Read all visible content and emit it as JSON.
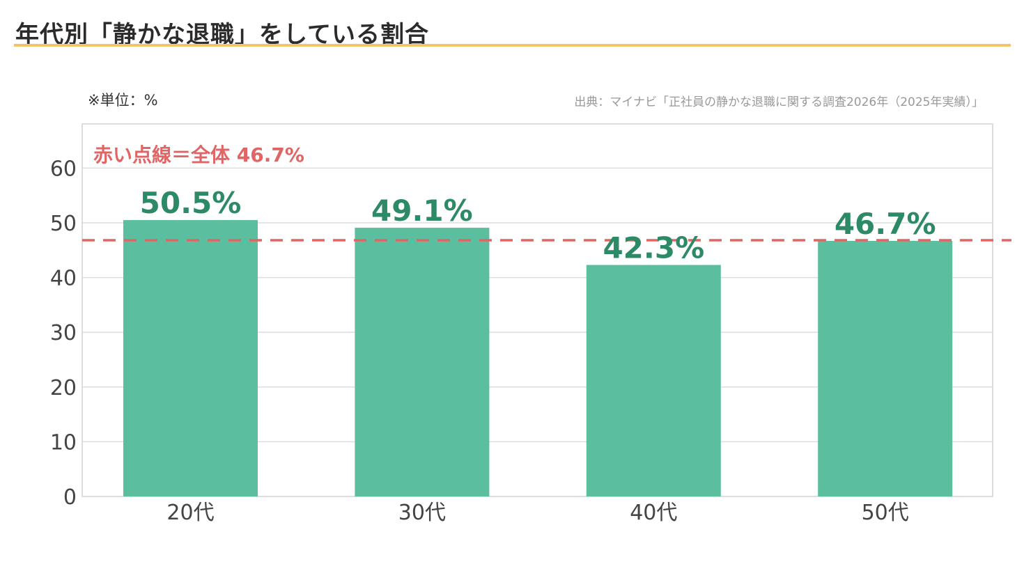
{
  "page": {
    "title": "年代別「静かな退職」をしている割合",
    "unit_note": "※単位：%",
    "source_note": "出典：マイナビ「正社員の静かな退職に関する調査2026年（2025年実績）」"
  },
  "colors": {
    "bar": "#5bbf9f",
    "data_label": "#2d8a66",
    "reference_line": "#e06666",
    "title_rule": "#f2c36b",
    "grid": "#dddddd"
  },
  "chart_data": {
    "type": "bar",
    "categories": [
      "20代",
      "30代",
      "40代",
      "50代"
    ],
    "values": [
      50.5,
      49.1,
      42.3,
      46.7
    ],
    "value_labels": [
      "50.5%",
      "49.1%",
      "42.3%",
      "46.7%"
    ],
    "ylim": [
      0,
      68
    ],
    "yticks": [
      0,
      10,
      20,
      30,
      40,
      50,
      60
    ],
    "ytick_labels": [
      "0",
      "10",
      "20",
      "30",
      "40",
      "50",
      "60"
    ],
    "grid": true,
    "reference_line": {
      "value": 46.7,
      "style": "dashed",
      "label": "赤い点線＝全体 46.7%"
    }
  }
}
